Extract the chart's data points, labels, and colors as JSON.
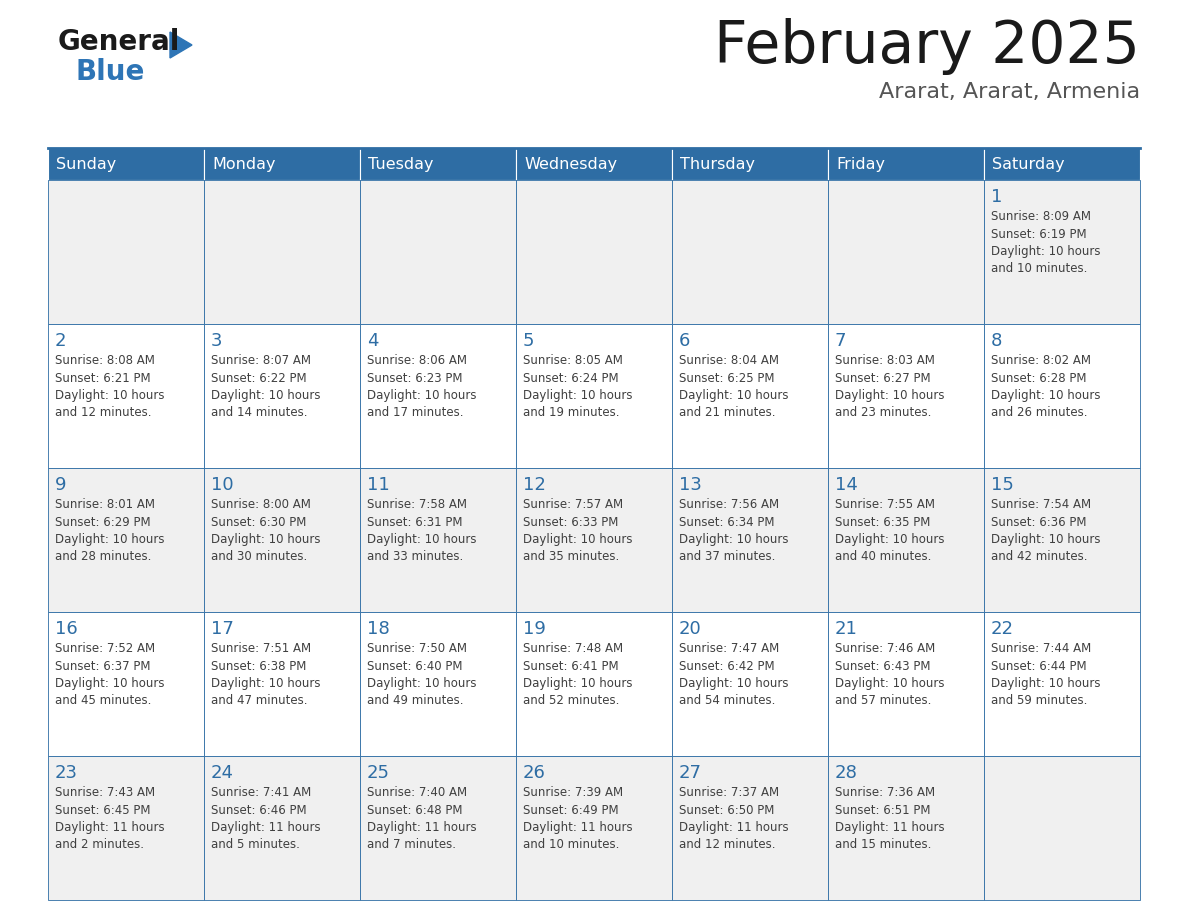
{
  "title": "February 2025",
  "subtitle": "Ararat, Ararat, Armenia",
  "header_bg": "#2E6DA4",
  "header_text_color": "#FFFFFF",
  "day_names": [
    "Sunday",
    "Monday",
    "Tuesday",
    "Wednesday",
    "Thursday",
    "Friday",
    "Saturday"
  ],
  "cell_bg_odd": "#F0F0F0",
  "cell_bg_even": "#FFFFFF",
  "cell_border_color": "#2E6DA4",
  "day_number_color": "#2E6DA4",
  "info_text_color": "#404040",
  "logo_general_color": "#1a1a1a",
  "logo_blue_color": "#2E75B6",
  "calendar_data": [
    [
      "",
      "",
      "",
      "",
      "",
      "",
      "1\nSunrise: 8:09 AM\nSunset: 6:19 PM\nDaylight: 10 hours\nand 10 minutes."
    ],
    [
      "2\nSunrise: 8:08 AM\nSunset: 6:21 PM\nDaylight: 10 hours\nand 12 minutes.",
      "3\nSunrise: 8:07 AM\nSunset: 6:22 PM\nDaylight: 10 hours\nand 14 minutes.",
      "4\nSunrise: 8:06 AM\nSunset: 6:23 PM\nDaylight: 10 hours\nand 17 minutes.",
      "5\nSunrise: 8:05 AM\nSunset: 6:24 PM\nDaylight: 10 hours\nand 19 minutes.",
      "6\nSunrise: 8:04 AM\nSunset: 6:25 PM\nDaylight: 10 hours\nand 21 minutes.",
      "7\nSunrise: 8:03 AM\nSunset: 6:27 PM\nDaylight: 10 hours\nand 23 minutes.",
      "8\nSunrise: 8:02 AM\nSunset: 6:28 PM\nDaylight: 10 hours\nand 26 minutes."
    ],
    [
      "9\nSunrise: 8:01 AM\nSunset: 6:29 PM\nDaylight: 10 hours\nand 28 minutes.",
      "10\nSunrise: 8:00 AM\nSunset: 6:30 PM\nDaylight: 10 hours\nand 30 minutes.",
      "11\nSunrise: 7:58 AM\nSunset: 6:31 PM\nDaylight: 10 hours\nand 33 minutes.",
      "12\nSunrise: 7:57 AM\nSunset: 6:33 PM\nDaylight: 10 hours\nand 35 minutes.",
      "13\nSunrise: 7:56 AM\nSunset: 6:34 PM\nDaylight: 10 hours\nand 37 minutes.",
      "14\nSunrise: 7:55 AM\nSunset: 6:35 PM\nDaylight: 10 hours\nand 40 minutes.",
      "15\nSunrise: 7:54 AM\nSunset: 6:36 PM\nDaylight: 10 hours\nand 42 minutes."
    ],
    [
      "16\nSunrise: 7:52 AM\nSunset: 6:37 PM\nDaylight: 10 hours\nand 45 minutes.",
      "17\nSunrise: 7:51 AM\nSunset: 6:38 PM\nDaylight: 10 hours\nand 47 minutes.",
      "18\nSunrise: 7:50 AM\nSunset: 6:40 PM\nDaylight: 10 hours\nand 49 minutes.",
      "19\nSunrise: 7:48 AM\nSunset: 6:41 PM\nDaylight: 10 hours\nand 52 minutes.",
      "20\nSunrise: 7:47 AM\nSunset: 6:42 PM\nDaylight: 10 hours\nand 54 minutes.",
      "21\nSunrise: 7:46 AM\nSunset: 6:43 PM\nDaylight: 10 hours\nand 57 minutes.",
      "22\nSunrise: 7:44 AM\nSunset: 6:44 PM\nDaylight: 10 hours\nand 59 minutes."
    ],
    [
      "23\nSunrise: 7:43 AM\nSunset: 6:45 PM\nDaylight: 11 hours\nand 2 minutes.",
      "24\nSunrise: 7:41 AM\nSunset: 6:46 PM\nDaylight: 11 hours\nand 5 minutes.",
      "25\nSunrise: 7:40 AM\nSunset: 6:48 PM\nDaylight: 11 hours\nand 7 minutes.",
      "26\nSunrise: 7:39 AM\nSunset: 6:49 PM\nDaylight: 11 hours\nand 10 minutes.",
      "27\nSunrise: 7:37 AM\nSunset: 6:50 PM\nDaylight: 11 hours\nand 12 minutes.",
      "28\nSunrise: 7:36 AM\nSunset: 6:51 PM\nDaylight: 11 hours\nand 15 minutes.",
      ""
    ]
  ]
}
